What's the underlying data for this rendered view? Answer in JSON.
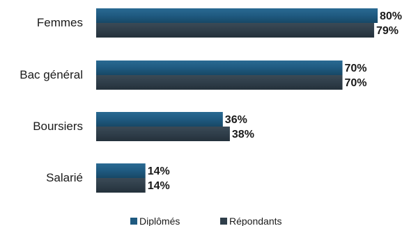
{
  "chart_data": {
    "type": "bar",
    "orientation": "horizontal",
    "categories": [
      "Femmes",
      "Bac général",
      "Boursiers",
      "Salarié"
    ],
    "series": [
      {
        "name": "Diplômés",
        "values": [
          80,
          70,
          36,
          14
        ],
        "color": "#1f5a80"
      },
      {
        "name": "Répondants",
        "values": [
          79,
          70,
          38,
          14
        ],
        "color": "#2f3e4a"
      }
    ],
    "value_labels": [
      [
        "80%",
        "70%",
        "36%",
        "14%"
      ],
      [
        "79%",
        "70%",
        "38%",
        "14%"
      ]
    ],
    "xlim": [
      0,
      100
    ],
    "grid": false,
    "legend_position": "bottom"
  }
}
